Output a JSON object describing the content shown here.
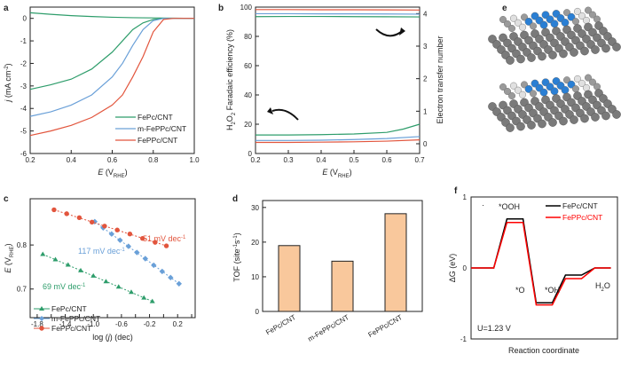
{
  "panel_labels": {
    "a": "a",
    "b": "b",
    "c": "c",
    "d": "d",
    "e": "e",
    "f": "f"
  },
  "colors": {
    "fepc": "#2e9d6b",
    "mfeppc": "#6aa0d8",
    "feppc": "#e2553d",
    "bar": "#f9c89c",
    "f_fepc": "#000000",
    "f_feppc": "#ff0000",
    "atom_gray": "#7a7a7a",
    "atom_blue": "#2a7fd4",
    "atom_white": "#e0e0e0"
  },
  "chart_data": [
    {
      "panel": "a",
      "type": "line",
      "xlabel": "E (VRHE)",
      "ylabel": "j (mA cm-2)",
      "xlim": [
        0.2,
        1.0
      ],
      "ylim": [
        -6,
        0.5
      ],
      "xticks": [
        "0.2",
        "0.4",
        "0.6",
        "0.8",
        "1.0"
      ],
      "yticks": [
        "0",
        "-1",
        "-2",
        "-3",
        "-4",
        "-5",
        "-6"
      ],
      "series": [
        {
          "name": "FePc/CNT",
          "color_key": "fepc",
          "x": [
            0.2,
            0.3,
            0.4,
            0.5,
            0.6,
            0.7,
            0.8,
            0.9,
            1.0
          ],
          "y": [
            0.25,
            0.18,
            0.12,
            0.08,
            0.05,
            0.03,
            0.02,
            0.01,
            0.0
          ]
        },
        {
          "name": "FePc/CNT (ORR)",
          "color_key": "fepc",
          "x": [
            0.2,
            0.3,
            0.4,
            0.5,
            0.6,
            0.65,
            0.7,
            0.75,
            0.8,
            0.85,
            0.9,
            1.0
          ],
          "y": [
            -3.15,
            -2.95,
            -2.7,
            -2.25,
            -1.5,
            -1.0,
            -0.5,
            -0.2,
            -0.05,
            0.0,
            0.0,
            0.0
          ]
        },
        {
          "name": "m-FePPc/CNT",
          "color_key": "mfeppc",
          "x": [
            0.2,
            0.3,
            0.4,
            0.5,
            0.6,
            0.65,
            0.7,
            0.75,
            0.8,
            0.85,
            0.9,
            1.0
          ],
          "y": [
            -4.35,
            -4.15,
            -3.85,
            -3.4,
            -2.6,
            -2.0,
            -1.2,
            -0.5,
            -0.1,
            0.0,
            0.0,
            0.0
          ]
        },
        {
          "name": "FePPc/CNT",
          "color_key": "feppc",
          "x": [
            0.2,
            0.3,
            0.4,
            0.5,
            0.6,
            0.65,
            0.7,
            0.75,
            0.8,
            0.85,
            0.9,
            1.0
          ],
          "y": [
            -5.2,
            -5.0,
            -4.75,
            -4.4,
            -3.85,
            -3.4,
            -2.6,
            -1.7,
            -0.6,
            -0.05,
            0.0,
            0.0
          ]
        }
      ],
      "legend": [
        "FePc/CNT",
        "m-FePPc/CNT",
        "FePPc/CNT"
      ]
    },
    {
      "panel": "b",
      "type": "line",
      "xlabel": "E (VRHE)",
      "ylabel": "H2O2 Faradaic efficiency (%)",
      "y2label": "Electron transfer number",
      "xlim": [
        0.2,
        0.7
      ],
      "ylim": [
        0,
        100
      ],
      "y2lim": [
        -0.3,
        4.2
      ],
      "xticks": [
        "0.2",
        "0.3",
        "0.4",
        "0.5",
        "0.6",
        "0.7"
      ],
      "yticks": [
        "0",
        "20",
        "40",
        "60",
        "80",
        "100"
      ],
      "y2ticks": [
        "0",
        "1",
        "2",
        "3",
        "4"
      ],
      "series": [
        {
          "name": "FePc/CNT FE",
          "color_key": "fepc",
          "axis": "left",
          "x": [
            0.2,
            0.3,
            0.4,
            0.5,
            0.6,
            0.7
          ],
          "y": [
            93.5,
            93.6,
            93.6,
            93.5,
            93.4,
            93.3
          ]
        },
        {
          "name": "m-FePPc/CNT FE",
          "color_key": "mfeppc",
          "axis": "left",
          "x": [
            0.2,
            0.3,
            0.4,
            0.5,
            0.6,
            0.7
          ],
          "y": [
            95.5,
            95.5,
            95.4,
            95.4,
            95.3,
            95.2
          ]
        },
        {
          "name": "FePPc/CNT FE",
          "color_key": "feppc",
          "axis": "left",
          "x": [
            0.2,
            0.3,
            0.4,
            0.5,
            0.6,
            0.7
          ],
          "y": [
            98.3,
            98.3,
            98.2,
            98.2,
            98.1,
            98.0
          ]
        },
        {
          "name": "FePc/CNT n",
          "color_key": "fepc",
          "axis": "right",
          "x": [
            0.2,
            0.3,
            0.4,
            0.5,
            0.6,
            0.65,
            0.7
          ],
          "y": [
            0.27,
            0.27,
            0.28,
            0.3,
            0.35,
            0.45,
            0.6
          ]
        },
        {
          "name": "m-FePPc/CNT n",
          "color_key": "mfeppc",
          "axis": "right",
          "x": [
            0.2,
            0.3,
            0.4,
            0.5,
            0.6,
            0.7
          ],
          "y": [
            0.1,
            0.1,
            0.11,
            0.13,
            0.16,
            0.22
          ]
        },
        {
          "name": "FePPc/CNT n",
          "color_key": "feppc",
          "axis": "right",
          "x": [
            0.2,
            0.3,
            0.4,
            0.5,
            0.6,
            0.7
          ],
          "y": [
            0.04,
            0.04,
            0.05,
            0.06,
            0.08,
            0.12
          ]
        }
      ]
    },
    {
      "panel": "c",
      "type": "scatter",
      "xlabel": "log (j) (dec)",
      "ylabel": "E (VRHE)",
      "xlim": [
        -1.9,
        0.45
      ],
      "ylim": [
        0.635,
        0.905
      ],
      "xticks": [
        "-1.8",
        "-1.6",
        "-1.4",
        "-1.2",
        "-1.0",
        "-0.8",
        "-0.6",
        "-0.4",
        "-0.2",
        "0.0",
        "0.2",
        "0.4"
      ],
      "yticks": [
        "0.7",
        "0.8"
      ],
      "series": [
        {
          "name": "FePc/CNT",
          "color_key": "fepc",
          "marker": "triangle",
          "x": [
            -1.72,
            -1.54,
            -1.36,
            -1.18,
            -1.0,
            -0.82,
            -0.64,
            -0.46,
            -0.28,
            -0.16
          ],
          "y": [
            0.779,
            0.767,
            0.755,
            0.742,
            0.73,
            0.717,
            0.705,
            0.693,
            0.68,
            0.672
          ]
        },
        {
          "name": "m-FePPc/CNT",
          "color_key": "mfeppc",
          "marker": "diamond",
          "x": [
            -0.98,
            -0.86,
            -0.74,
            -0.62,
            -0.5,
            -0.38,
            -0.26,
            -0.14,
            -0.02,
            0.1,
            0.22
          ],
          "y": [
            0.853,
            0.839,
            0.825,
            0.811,
            0.797,
            0.783,
            0.769,
            0.754,
            0.74,
            0.726,
            0.712
          ]
        },
        {
          "name": "FePPc/CNT",
          "color_key": "feppc",
          "marker": "circle",
          "x": [
            -1.56,
            -1.38,
            -1.2,
            -1.02,
            -0.84,
            -0.66,
            -0.48,
            -0.3,
            -0.12,
            0.04
          ],
          "y": [
            0.88,
            0.871,
            0.862,
            0.852,
            0.843,
            0.834,
            0.825,
            0.815,
            0.806,
            0.798
          ]
        }
      ],
      "annotations": [
        {
          "text": "51 mV dec-1",
          "color_key": "feppc"
        },
        {
          "text": "117 mV dec-1",
          "color_key": "mfeppc"
        },
        {
          "text": "69 mV dec-1",
          "color_key": "fepc"
        }
      ],
      "legend": [
        "FePc/CNT",
        "m-FePPc/CNT",
        "FePPc/CNT"
      ]
    },
    {
      "panel": "d",
      "type": "bar",
      "ylabel": "TOF (site-1s-1)",
      "categories": [
        "FePc/CNT",
        "m-FePPc/CNT",
        "FePPc/CNT"
      ],
      "values": [
        19.0,
        14.5,
        28.2
      ],
      "ylim": [
        0,
        32
      ],
      "yticks": [
        "0",
        "10",
        "20",
        "30"
      ]
    },
    {
      "panel": "f",
      "type": "line",
      "xlabel": "Reaction coordinate",
      "ylabel": "ΔG (eV)",
      "ylim": [
        -1,
        1
      ],
      "yticks": [
        "-1",
        "0",
        "1"
      ],
      "states": [
        "",
        "*OOH",
        "*O",
        "*OH",
        "H2O"
      ],
      "series": [
        {
          "name": "FePc/CNT",
          "color_key": "f_fepc",
          "levels": [
            0.0,
            0.69,
            -0.49,
            -0.1,
            0.0
          ]
        },
        {
          "name": "FePPc/CNT",
          "color_key": "f_feppc",
          "levels": [
            0.0,
            0.64,
            -0.52,
            -0.15,
            0.0
          ]
        }
      ],
      "annotations": [
        {
          "text": "*OOH"
        },
        {
          "text": "*O"
        },
        {
          "text": "*OH"
        },
        {
          "text": "H2O"
        },
        {
          "text": "U=1.23 V"
        }
      ],
      "legend": [
        "FePc/CNT",
        "FePPc/CNT"
      ]
    }
  ]
}
